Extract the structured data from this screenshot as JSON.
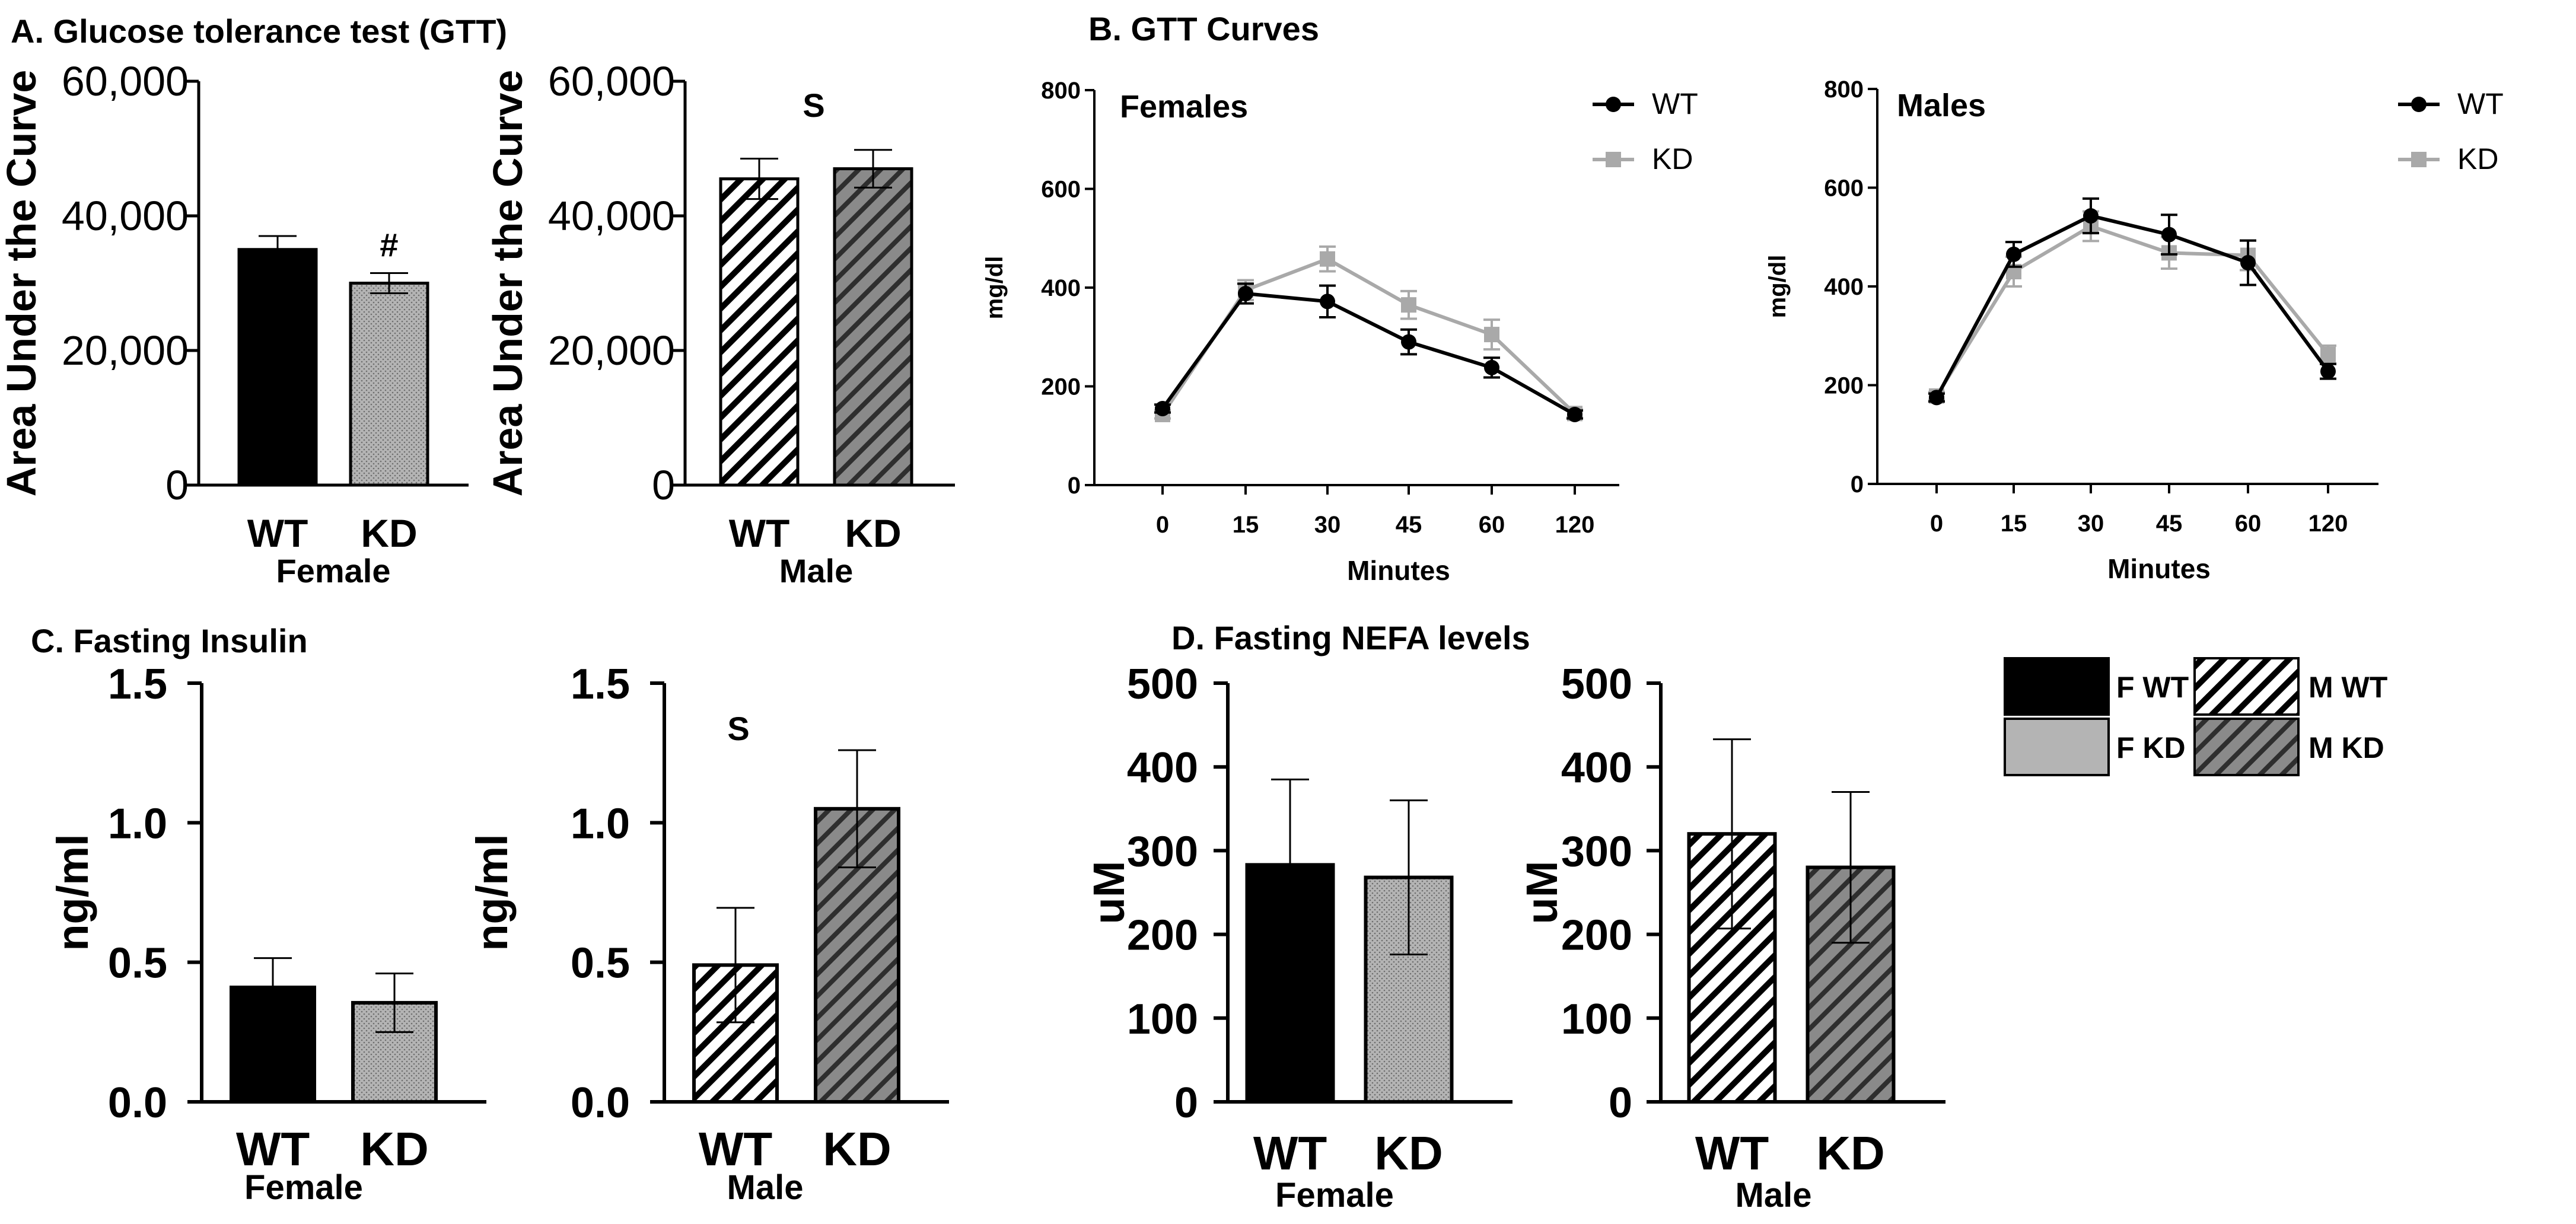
{
  "titles": {
    "a": "A. Glucose tolerance test (GTT)",
    "b": "B. GTT Curves",
    "c": "C. Fasting Insulin",
    "d": "D. Fasting NEFA levels"
  },
  "colors": {
    "wt_female": "#000000",
    "kd_female": "#b4b4b4",
    "male_kd": "#7a7a7a",
    "line_wt": "#000000",
    "line_kd": "#a9a9a9"
  },
  "chart_data": [
    {
      "id": "a-female",
      "type": "bar",
      "title": "A. Glucose tolerance test (GTT)",
      "ylabel": "Area Under the Curve",
      "group_label": "Female",
      "categories": [
        "WT",
        "KD"
      ],
      "values": [
        35000,
        30000
      ],
      "errors": [
        2000,
        1500
      ],
      "ylim": [
        0,
        60000
      ],
      "yticks": [
        0,
        20000,
        40000,
        60000
      ],
      "yticklabels": [
        "0",
        "20,000",
        "40,000",
        "60,000"
      ],
      "annotations": [
        {
          "text": "#",
          "category": "KD"
        }
      ]
    },
    {
      "id": "a-male",
      "type": "bar",
      "ylabel": "Area Under the Curve",
      "group_label": "Male",
      "categories": [
        "WT",
        "KD"
      ],
      "values": [
        45500,
        47000
      ],
      "errors": [
        3000,
        2800
      ],
      "ylim": [
        0,
        60000
      ],
      "yticks": [
        0,
        20000,
        40000,
        60000
      ],
      "yticklabels": [
        "0",
        "20,000",
        "40,000",
        "60,000"
      ],
      "annotations": [
        {
          "text": "S",
          "category": "center"
        }
      ]
    },
    {
      "id": "b-females",
      "type": "line",
      "title": "Females",
      "xlabel": "Minutes",
      "ylabel": "mg/dl",
      "x": [
        "0",
        "15",
        "30",
        "45",
        "60",
        "120"
      ],
      "ylim": [
        0,
        800
      ],
      "yticks": [
        0,
        200,
        400,
        600,
        800
      ],
      "series": [
        {
          "name": "WT",
          "values": [
            155,
            388,
            372,
            290,
            238,
            143
          ],
          "errors": [
            8,
            20,
            32,
            25,
            20,
            8
          ]
        },
        {
          "name": "KD",
          "values": [
            143,
            395,
            458,
            365,
            305,
            145
          ],
          "errors": [
            8,
            20,
            25,
            28,
            30,
            8
          ]
        }
      ]
    },
    {
      "id": "b-males",
      "type": "line",
      "title": "Males",
      "xlabel": "Minutes",
      "ylabel": "mg/dl",
      "x": [
        "0",
        "15",
        "30",
        "45",
        "60",
        "120"
      ],
      "ylim": [
        0,
        800
      ],
      "yticks": [
        0,
        200,
        400,
        600,
        800
      ],
      "series": [
        {
          "name": "WT",
          "values": [
            175,
            465,
            543,
            505,
            448,
            228
          ],
          "errors": [
            8,
            25,
            35,
            40,
            45,
            15
          ]
        },
        {
          "name": "KD",
          "values": [
            178,
            430,
            522,
            468,
            463,
            262
          ],
          "errors": [
            8,
            30,
            30,
            32,
            30,
            18
          ]
        }
      ]
    },
    {
      "id": "c-female",
      "type": "bar",
      "title": "C. Fasting Insulin",
      "ylabel": "ng/ml",
      "group_label": "Female",
      "categories": [
        "WT",
        "KD"
      ],
      "values": [
        0.41,
        0.355
      ],
      "errors": [
        0.105,
        0.105
      ],
      "ylim": [
        0,
        1.5
      ],
      "yticks": [
        0,
        0.5,
        1.0,
        1.5
      ],
      "yticklabels": [
        "0.0",
        "0.5",
        "1.0",
        "1.5"
      ]
    },
    {
      "id": "c-male",
      "type": "bar",
      "ylabel": "ng/ml",
      "group_label": "Male",
      "categories": [
        "WT",
        "KD"
      ],
      "values": [
        0.49,
        1.05
      ],
      "errors": [
        0.205,
        0.21
      ],
      "ylim": [
        0,
        1.5
      ],
      "yticks": [
        0,
        0.5,
        1.0,
        1.5
      ],
      "yticklabels": [
        "0.0",
        "0.5",
        "1.0",
        "1.5"
      ],
      "annotations": [
        {
          "text": "S",
          "category": "center"
        }
      ]
    },
    {
      "id": "d-female",
      "type": "bar",
      "title": "D. Fasting NEFA levels",
      "ylabel": "uM",
      "group_label": "Female",
      "categories": [
        "WT",
        "KD"
      ],
      "values": [
        283,
        268
      ],
      "errors": [
        102,
        92
      ],
      "ylim": [
        0,
        500
      ],
      "yticks": [
        0,
        100,
        200,
        300,
        400,
        500
      ],
      "yticklabels": [
        "0",
        "100",
        "200",
        "300",
        "400",
        "500"
      ]
    },
    {
      "id": "d-male",
      "type": "bar",
      "ylabel": "uM",
      "group_label": "Male",
      "categories": [
        "WT",
        "KD"
      ],
      "values": [
        320,
        280
      ],
      "errors": [
        113,
        90
      ],
      "ylim": [
        0,
        500
      ],
      "yticks": [
        0,
        100,
        200,
        300,
        400,
        500
      ],
      "yticklabels": [
        "0",
        "100",
        "200",
        "300",
        "400",
        "500"
      ]
    }
  ],
  "legend": {
    "items": [
      {
        "label": "F WT",
        "pattern": "solid-black"
      },
      {
        "label": "F KD",
        "pattern": "solid-gray"
      },
      {
        "label": "M WT",
        "pattern": "hatch-white"
      },
      {
        "label": "M KD",
        "pattern": "hatch-gray"
      }
    ]
  }
}
